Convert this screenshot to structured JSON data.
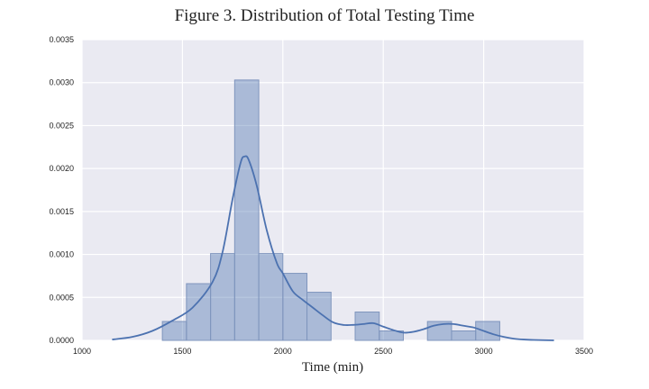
{
  "colors": {
    "plot_background": "#EAEAF2",
    "grid": "#FFFFFF",
    "bar_fill": "#4C72B0",
    "bar_stroke": "#7F95BD",
    "kde_line": "#4C72B0"
  },
  "chart_data": {
    "type": "bar",
    "subtype": "histogram-with-kde",
    "title": "Figure 3. Distribution of Total Testing Time",
    "xlabel": "Time (min)",
    "ylabel": "",
    "xlim": [
      1000,
      3500
    ],
    "ylim": [
      0,
      0.0035
    ],
    "x_ticks": [
      "1000",
      "1500",
      "2000",
      "2500",
      "3000",
      "3500"
    ],
    "y_ticks": [
      "0.0000",
      "0.0005",
      "0.0010",
      "0.0015",
      "0.0020",
      "0.0025",
      "0.0030",
      "0.0035"
    ],
    "grid": true,
    "bins": [
      {
        "start": 1400,
        "end": 1520,
        "density": 0.00022
      },
      {
        "start": 1520,
        "end": 1640,
        "density": 0.00066
      },
      {
        "start": 1640,
        "end": 1760,
        "density": 0.00101
      },
      {
        "start": 1760,
        "end": 1880,
        "density": 0.00303
      },
      {
        "start": 1880,
        "end": 2000,
        "density": 0.00101
      },
      {
        "start": 2000,
        "end": 2120,
        "density": 0.00078
      },
      {
        "start": 2120,
        "end": 2240,
        "density": 0.00056
      },
      {
        "start": 2240,
        "end": 2360,
        "density": 0
      },
      {
        "start": 2360,
        "end": 2480,
        "density": 0.00033
      },
      {
        "start": 2480,
        "end": 2600,
        "density": 0.00011
      },
      {
        "start": 2600,
        "end": 2720,
        "density": 0
      },
      {
        "start": 2720,
        "end": 2840,
        "density": 0.00022
      },
      {
        "start": 2840,
        "end": 2960,
        "density": 0.00011
      },
      {
        "start": 2960,
        "end": 3080,
        "density": 0.00022
      }
    ],
    "kde": {
      "x": [
        1150,
        1250,
        1350,
        1450,
        1550,
        1650,
        1700,
        1750,
        1790,
        1810,
        1830,
        1870,
        1920,
        1970,
        2000,
        2050,
        2100,
        2150,
        2200,
        2250,
        2300,
        2350,
        2400,
        2450,
        2500,
        2550,
        2600,
        2650,
        2700,
        2750,
        2800,
        2850,
        2900,
        2950,
        3000,
        3050,
        3100,
        3150,
        3200,
        3250,
        3350
      ],
      "y": [
        1e-05,
        4e-05,
        0.00011,
        0.00023,
        0.00038,
        0.00068,
        0.00103,
        0.00165,
        0.00207,
        0.00214,
        0.0021,
        0.0018,
        0.00128,
        0.0009,
        0.00078,
        0.00057,
        0.00047,
        0.00038,
        0.00029,
        0.00021,
        0.00018,
        0.00018,
        0.00019,
        0.0002,
        0.00016,
        0.00012,
        9e-05,
        0.0001,
        0.00013,
        0.00017,
        0.00019,
        0.00019,
        0.00017,
        0.00015,
        0.00011,
        7e-05,
        4e-05,
        2e-05,
        1e-05,
        5e-06,
        0.0
      ]
    }
  }
}
